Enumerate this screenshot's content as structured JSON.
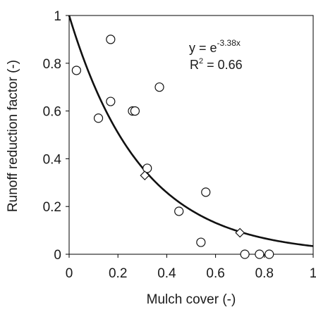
{
  "chart_data": {
    "type": "scatter",
    "xlabel": "Mulch cover (-)",
    "ylabel": "Runoff reduction factor (-)",
    "xlim": [
      0,
      1
    ],
    "ylim": [
      0,
      1
    ],
    "x_ticks": [
      0,
      0.2,
      0.4,
      0.6,
      0.8,
      1
    ],
    "x_tick_labels": [
      "0",
      "0.2",
      "0.4",
      "0.6",
      "0.8",
      "1"
    ],
    "y_ticks": [
      0,
      0.2,
      0.4,
      0.6,
      0.8,
      1
    ],
    "y_tick_labels": [
      "0",
      "0.2",
      "0.4",
      "0.6",
      "0.8",
      "1"
    ],
    "grid": false,
    "series": [
      {
        "marker": "circle",
        "points": [
          {
            "x": 0.03,
            "y": 0.77
          },
          {
            "x": 0.12,
            "y": 0.57
          },
          {
            "x": 0.17,
            "y": 0.9
          },
          {
            "x": 0.17,
            "y": 0.64
          },
          {
            "x": 0.26,
            "y": 0.6
          },
          {
            "x": 0.27,
            "y": 0.6
          },
          {
            "x": 0.32,
            "y": 0.36
          },
          {
            "x": 0.37,
            "y": 0.7
          },
          {
            "x": 0.45,
            "y": 0.18
          },
          {
            "x": 0.54,
            "y": 0.05
          },
          {
            "x": 0.56,
            "y": 0.26
          },
          {
            "x": 0.72,
            "y": 0.0
          },
          {
            "x": 0.78,
            "y": 0.0
          },
          {
            "x": 0.82,
            "y": 0.0
          }
        ]
      },
      {
        "marker": "diamond",
        "points": [
          {
            "x": 0.31,
            "y": 0.33
          },
          {
            "x": 0.7,
            "y": 0.09
          }
        ]
      }
    ],
    "fit": {
      "equation_base": "y = e",
      "equation_exponent": "-3.38x",
      "coefficient": -3.38,
      "r2_label": "R",
      "r2_sup": "2",
      "r2_value": " = 0.66"
    }
  }
}
